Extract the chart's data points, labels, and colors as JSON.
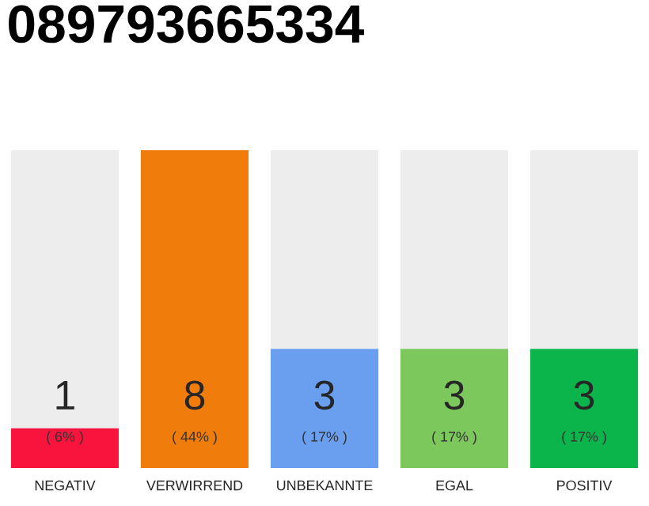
{
  "chart_data": {
    "type": "bar",
    "title": "089793665334",
    "categories": [
      "NEGATIV",
      "VERWIRREND",
      "UNBEKANNTE",
      "EGAL",
      "POSITIV"
    ],
    "values": [
      1,
      8,
      3,
      3,
      3
    ],
    "colors": [
      "#f8143c",
      "#f07c0c",
      "#6a9ff0",
      "#7cc85c",
      "#0cb44c"
    ],
    "value_labels": [
      "1",
      "8",
      "3",
      "3",
      "3"
    ],
    "annotations": [
      "( 6% )",
      "( 44% )",
      "( 17% )",
      "( 17% )",
      "( 17% )"
    ]
  }
}
